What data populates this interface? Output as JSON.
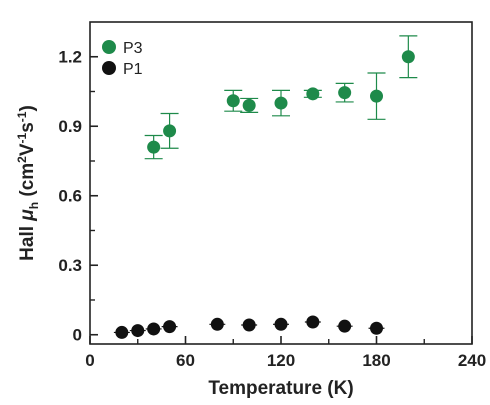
{
  "chart_data": {
    "type": "scatter",
    "xlabel": "Temperature (K)",
    "ylabel": "Hall μh (cm2V-1s-1)",
    "ylabel_parts": {
      "prefix": "Hall ",
      "mu": "μ",
      "mu_sub": "h",
      "unit_open": " (cm",
      "sup1": "2",
      "v": "V",
      "sup2": "-1",
      "s": "s",
      "sup3": "-1",
      "unit_close": ")"
    },
    "xlim": [
      0,
      240
    ],
    "ylim": [
      -0.04,
      1.35
    ],
    "x_ticks": [
      0,
      60,
      120,
      180,
      240
    ],
    "x_minor_ticks": [
      30,
      90,
      150,
      210
    ],
    "y_ticks": [
      0,
      0.3,
      0.6,
      0.9,
      1.2
    ],
    "y_tick_labels": [
      "0",
      "0.3",
      "0.6",
      "0.9",
      "1.2"
    ],
    "legend_position": "top-left",
    "series": [
      {
        "name": "P3",
        "color": "#1e8a4a",
        "points": [
          {
            "x": 40,
            "y": 0.81,
            "yerr": 0.05
          },
          {
            "x": 50,
            "y": 0.88,
            "yerr": 0.075
          },
          {
            "x": 90,
            "y": 1.01,
            "yerr": 0.045
          },
          {
            "x": 100,
            "y": 0.99,
            "yerr": 0.03
          },
          {
            "x": 120,
            "y": 1.0,
            "yerr": 0.055
          },
          {
            "x": 140,
            "y": 1.04,
            "yerr": 0.015
          },
          {
            "x": 160,
            "y": 1.045,
            "yerr": 0.04
          },
          {
            "x": 180,
            "y": 1.03,
            "yerr": 0.1
          },
          {
            "x": 200,
            "y": 1.2,
            "yerr": 0.09
          }
        ]
      },
      {
        "name": "P1",
        "color": "#111111",
        "points": [
          {
            "x": 20,
            "y": 0.01,
            "xerr": 5
          },
          {
            "x": 30,
            "y": 0.018,
            "xerr": 5
          },
          {
            "x": 40,
            "y": 0.025,
            "xerr": 5
          },
          {
            "x": 50,
            "y": 0.035,
            "xerr": 5
          },
          {
            "x": 80,
            "y": 0.045,
            "xerr": 5
          },
          {
            "x": 100,
            "y": 0.042,
            "xerr": 5
          },
          {
            "x": 120,
            "y": 0.045,
            "xerr": 5
          },
          {
            "x": 140,
            "y": 0.055,
            "xerr": 5
          },
          {
            "x": 160,
            "y": 0.037,
            "xerr": 5
          },
          {
            "x": 180,
            "y": 0.028,
            "xerr": 5
          }
        ]
      }
    ]
  }
}
